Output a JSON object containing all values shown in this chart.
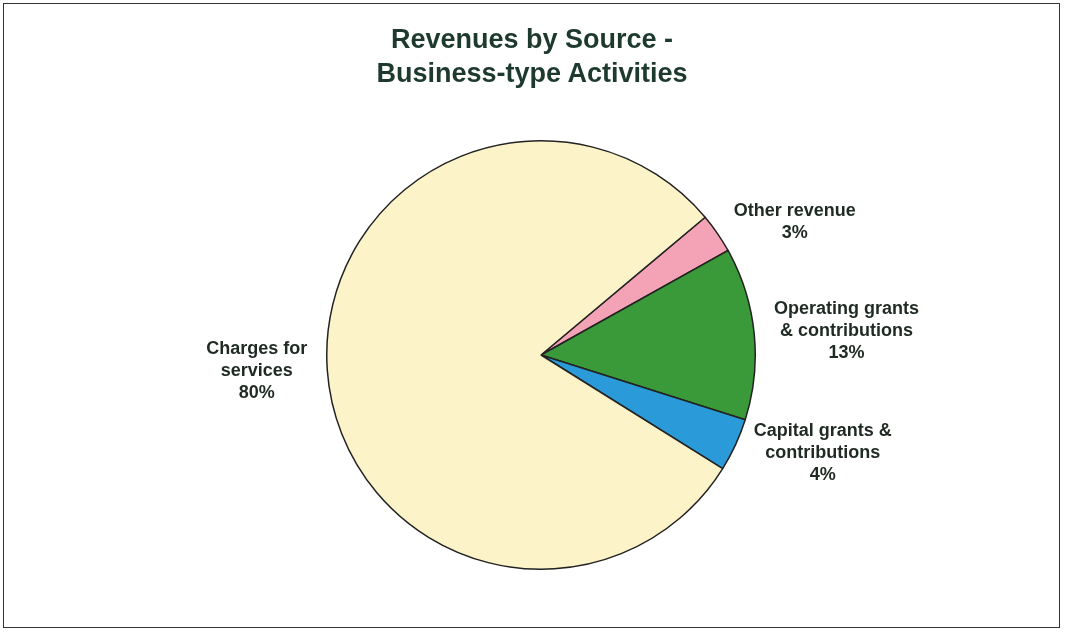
{
  "chart_data": {
    "type": "pie",
    "title": "Revenues by Source - Business-type Activities",
    "categories": [
      "Other revenue",
      "Operating grants & contributions",
      "Capital grants & contributions",
      "Charges for services"
    ],
    "values": [
      3,
      13,
      4,
      80
    ],
    "colors": [
      "#f4a3b6",
      "#3a9a3a",
      "#2a9bd8",
      "#fdf3c9"
    ],
    "value_labels": [
      "3%",
      "13%",
      "4%",
      "80%"
    ]
  }
}
